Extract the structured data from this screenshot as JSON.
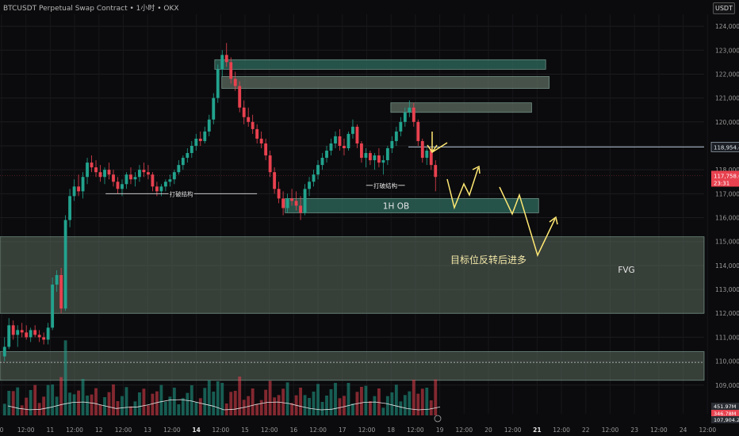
{
  "header": {
    "title": "BTCUSDT Perpetual Swap Contract • 1小时 • OKX",
    "unit_button": "USDT"
  },
  "colors": {
    "background": "#0b0b0d",
    "up": "#22a38e",
    "down": "#e8414f",
    "zone_teal": "#2f6b5d",
    "zone_gray": "#5c6b5f",
    "annotation": "#ffe873",
    "label_white": "#e6e6e6"
  },
  "chart_data": {
    "type": "candlestick",
    "ylim": [
      107800,
      124500
    ],
    "y_ticks": [
      "124,000.0",
      "123,000.0",
      "122,000.0",
      "121,000.0",
      "120,000.0",
      "119,000.0",
      "118,000.0",
      "117,000.0",
      "116,000.0",
      "115,000.0",
      "114,000.0",
      "113,000.0",
      "112,000.0",
      "111,000.0",
      "110,000.0",
      "109,000.0"
    ],
    "y_tick_values": [
      124000,
      123000,
      122000,
      121000,
      120000,
      119000,
      118000,
      117000,
      116000,
      115000,
      114000,
      113000,
      112000,
      111000,
      110000,
      109000
    ],
    "x_ticks": [
      "0",
      "12:00",
      "11",
      "12:00",
      "12",
      "12:00",
      "13",
      "12:00",
      "14",
      "12:00",
      "15",
      "12:00",
      "16",
      "12:00",
      "17",
      "12:00",
      "18",
      "12:00",
      "19",
      "12:00",
      "20",
      "12:00",
      "21",
      "12:00",
      "22",
      "12:00",
      "23",
      "12:00",
      "24",
      "12:00"
    ],
    "x_tick_bold": [
      "14",
      "21"
    ],
    "candles": [
      [
        110200,
        111000,
        110000,
        110600
      ],
      [
        110600,
        111800,
        110500,
        111500
      ],
      [
        111500,
        111700,
        110900,
        111100
      ],
      [
        111100,
        111500,
        110600,
        111300
      ],
      [
        111300,
        111600,
        111000,
        111200
      ],
      [
        111200,
        111500,
        110900,
        111000
      ],
      [
        111000,
        111400,
        110800,
        111300
      ],
      [
        111300,
        111500,
        111000,
        111100
      ],
      [
        111100,
        111300,
        110800,
        111000
      ],
      [
        111000,
        111200,
        110700,
        110900
      ],
      [
        110900,
        111600,
        110700,
        111400
      ],
      [
        111400,
        113500,
        111300,
        113200
      ],
      [
        113200,
        113800,
        112900,
        113600
      ],
      [
        113600,
        113900,
        112000,
        112200
      ],
      [
        112200,
        116100,
        112100,
        115900
      ],
      [
        115900,
        117200,
        115600,
        116900
      ],
      [
        116900,
        117600,
        116700,
        117300
      ],
      [
        117300,
        117800,
        116900,
        117100
      ],
      [
        117100,
        117900,
        116800,
        117700
      ],
      [
        117700,
        118500,
        117400,
        118300
      ],
      [
        118300,
        118600,
        117900,
        118100
      ],
      [
        118100,
        118400,
        117700,
        117900
      ],
      [
        117900,
        118200,
        117500,
        117700
      ],
      [
        117700,
        118100,
        117400,
        118000
      ],
      [
        118000,
        118300,
        117600,
        117800
      ],
      [
        117800,
        118000,
        117300,
        117500
      ],
      [
        117500,
        117700,
        117000,
        117200
      ],
      [
        117200,
        117600,
        116900,
        117400
      ],
      [
        117400,
        117900,
        117200,
        117800
      ],
      [
        117800,
        118100,
        117400,
        117600
      ],
      [
        117600,
        117900,
        117300,
        117700
      ],
      [
        117700,
        118200,
        117500,
        118000
      ],
      [
        118000,
        118300,
        117700,
        117900
      ],
      [
        117900,
        118200,
        117600,
        117800
      ],
      [
        117800,
        117900,
        117100,
        117300
      ],
      [
        117300,
        117500,
        116900,
        117100
      ],
      [
        117100,
        117400,
        116900,
        117300
      ],
      [
        117300,
        117600,
        117100,
        117500
      ],
      [
        117500,
        117800,
        117300,
        117600
      ],
      [
        117600,
        118000,
        117400,
        117900
      ],
      [
        117900,
        118400,
        117800,
        118200
      ],
      [
        118200,
        118600,
        118000,
        118500
      ],
      [
        118500,
        118900,
        118300,
        118700
      ],
      [
        118700,
        119200,
        118500,
        119000
      ],
      [
        119000,
        119500,
        118800,
        119300
      ],
      [
        119300,
        119600,
        119000,
        119200
      ],
      [
        119200,
        119800,
        119100,
        119600
      ],
      [
        119600,
        120300,
        119400,
        120100
      ],
      [
        120100,
        121200,
        119900,
        121000
      ],
      [
        121000,
        122400,
        120800,
        122200
      ],
      [
        122200,
        123000,
        121900,
        122800
      ],
      [
        122800,
        123300,
        122300,
        122500
      ],
      [
        122500,
        122700,
        121600,
        121800
      ],
      [
        121800,
        122100,
        121300,
        121500
      ],
      [
        121500,
        121700,
        120400,
        120600
      ],
      [
        120600,
        120900,
        119900,
        120200
      ],
      [
        120200,
        120600,
        119800,
        120000
      ],
      [
        120000,
        120300,
        119500,
        119700
      ],
      [
        119700,
        119900,
        119100,
        119300
      ],
      [
        119300,
        119600,
        118900,
        119100
      ],
      [
        119100,
        119300,
        118400,
        118600
      ],
      [
        118600,
        118800,
        117700,
        117900
      ],
      [
        117900,
        118100,
        117000,
        117200
      ],
      [
        117200,
        117500,
        116600,
        116800
      ],
      [
        116800,
        117100,
        116100,
        116400
      ],
      [
        116400,
        117000,
        116200,
        116800
      ],
      [
        116800,
        117200,
        116500,
        116700
      ],
      [
        116700,
        117100,
        116300,
        116500
      ],
      [
        116500,
        116900,
        115900,
        116200
      ],
      [
        116200,
        117400,
        116100,
        117200
      ],
      [
        117200,
        117700,
        116900,
        117500
      ],
      [
        117500,
        118000,
        117300,
        117800
      ],
      [
        117800,
        118400,
        117600,
        118200
      ],
      [
        118200,
        118700,
        118000,
        118500
      ],
      [
        118500,
        119000,
        118300,
        118800
      ],
      [
        118800,
        119300,
        118600,
        119100
      ],
      [
        119100,
        119600,
        118900,
        119400
      ],
      [
        119400,
        119700,
        118800,
        119000
      ],
      [
        119000,
        119300,
        118600,
        118900
      ],
      [
        118900,
        119600,
        118800,
        119500
      ],
      [
        119500,
        120100,
        119300,
        119800
      ],
      [
        119800,
        119900,
        118900,
        119100
      ],
      [
        119100,
        119200,
        118300,
        118500
      ],
      [
        118500,
        118900,
        118100,
        118700
      ],
      [
        118700,
        118800,
        118200,
        118400
      ],
      [
        118400,
        118700,
        118000,
        118600
      ],
      [
        118600,
        118900,
        118100,
        118300
      ],
      [
        118300,
        118600,
        117800,
        118400
      ],
      [
        118400,
        119000,
        118200,
        118900
      ],
      [
        118900,
        119400,
        118700,
        119200
      ],
      [
        119200,
        119800,
        119000,
        119600
      ],
      [
        119600,
        120200,
        119400,
        120000
      ],
      [
        120000,
        120600,
        119800,
        120400
      ],
      [
        120400,
        120900,
        120200,
        120600
      ],
      [
        120600,
        120800,
        119800,
        120000
      ],
      [
        120000,
        120100,
        119000,
        119200
      ],
      [
        119200,
        119300,
        118300,
        118500
      ],
      [
        118500,
        118900,
        118200,
        118800
      ],
      [
        118800,
        118900,
        118000,
        118200
      ],
      [
        118200,
        118400,
        117100,
        117700
      ]
    ],
    "zones": [
      {
        "name": "ob-top",
        "y": [
          122600,
          122200
        ],
        "x0": 0.305,
        "x1": 0.775,
        "tone": "teal"
      },
      {
        "name": "ob-second",
        "y": [
          121900,
          121400
        ],
        "x0": 0.315,
        "x1": 0.78,
        "tone": "gray"
      },
      {
        "name": "ob-right",
        "y": [
          120800,
          120400
        ],
        "x0": 0.555,
        "x1": 0.755,
        "tone": "gray"
      },
      {
        "name": "ob-1h",
        "y": [
          116800,
          116200
        ],
        "x0": 0.405,
        "x1": 0.765,
        "tone": "teal",
        "label": "1H OB"
      },
      {
        "name": "fvg",
        "y": [
          115200,
          112000
        ],
        "x0": 0.0,
        "x1": 1.0,
        "tone": "gray",
        "label": "FVG"
      },
      {
        "name": "lower-band",
        "y": [
          110400,
          109200
        ],
        "x0": 0.0,
        "x1": 1.0,
        "tone": "gray"
      }
    ],
    "structure_breaks": [
      {
        "label": "打破结构",
        "y": 117000,
        "x0": 0.15,
        "x1": 0.365
      },
      {
        "label": "打破结构",
        "y": 117350,
        "x0": 0.52,
        "x1": 0.575
      }
    ],
    "annotation_text": "目标位反转后进多",
    "price_line": {
      "value": 118954.4,
      "label": "118,954.4"
    },
    "current_price": {
      "label": "117,758.6",
      "countdown": "23:31",
      "value": 117758.6
    },
    "volume_labels": [
      "451.97M",
      "346.78M",
      "107,904.2"
    ]
  }
}
